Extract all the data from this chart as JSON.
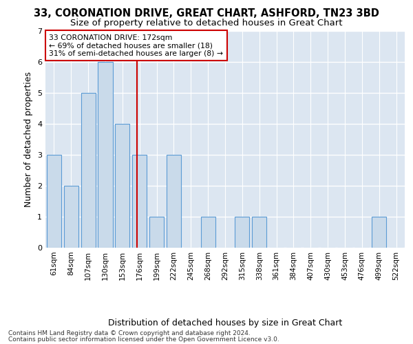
{
  "title": "33, CORONATION DRIVE, GREAT CHART, ASHFORD, TN23 3BD",
  "subtitle": "Size of property relative to detached houses in Great Chart",
  "xlabel": "Distribution of detached houses by size in Great Chart",
  "ylabel": "Number of detached properties",
  "footer_line1": "Contains HM Land Registry data © Crown copyright and database right 2024.",
  "footer_line2": "Contains public sector information licensed under the Open Government Licence v3.0.",
  "categories": [
    "61sqm",
    "84sqm",
    "107sqm",
    "130sqm",
    "153sqm",
    "176sqm",
    "199sqm",
    "222sqm",
    "245sqm",
    "268sqm",
    "292sqm",
    "315sqm",
    "338sqm",
    "361sqm",
    "384sqm",
    "407sqm",
    "430sqm",
    "453sqm",
    "476sqm",
    "499sqm",
    "522sqm"
  ],
  "values": [
    3,
    2,
    5,
    6,
    4,
    3,
    1,
    3,
    0,
    1,
    0,
    1,
    1,
    0,
    0,
    0,
    0,
    0,
    0,
    1,
    0
  ],
  "bar_color": "#c9daea",
  "bar_edge_color": "#5b9bd5",
  "highlight_line_color": "#cc0000",
  "annotation_text": "33 CORONATION DRIVE: 172sqm\n← 69% of detached houses are smaller (18)\n31% of semi-detached houses are larger (8) →",
  "annotation_box_facecolor": "#ffffff",
  "annotation_box_edge_color": "#cc0000",
  "ylim": [
    0,
    7
  ],
  "yticks": [
    0,
    1,
    2,
    3,
    4,
    5,
    6,
    7
  ],
  "figure_background": "#ffffff",
  "axes_background": "#dce6f1",
  "grid_color": "#ffffff",
  "title_fontsize": 10.5,
  "subtitle_fontsize": 9.5,
  "axis_label_fontsize": 9,
  "tick_fontsize": 7.5,
  "footer_fontsize": 6.5
}
